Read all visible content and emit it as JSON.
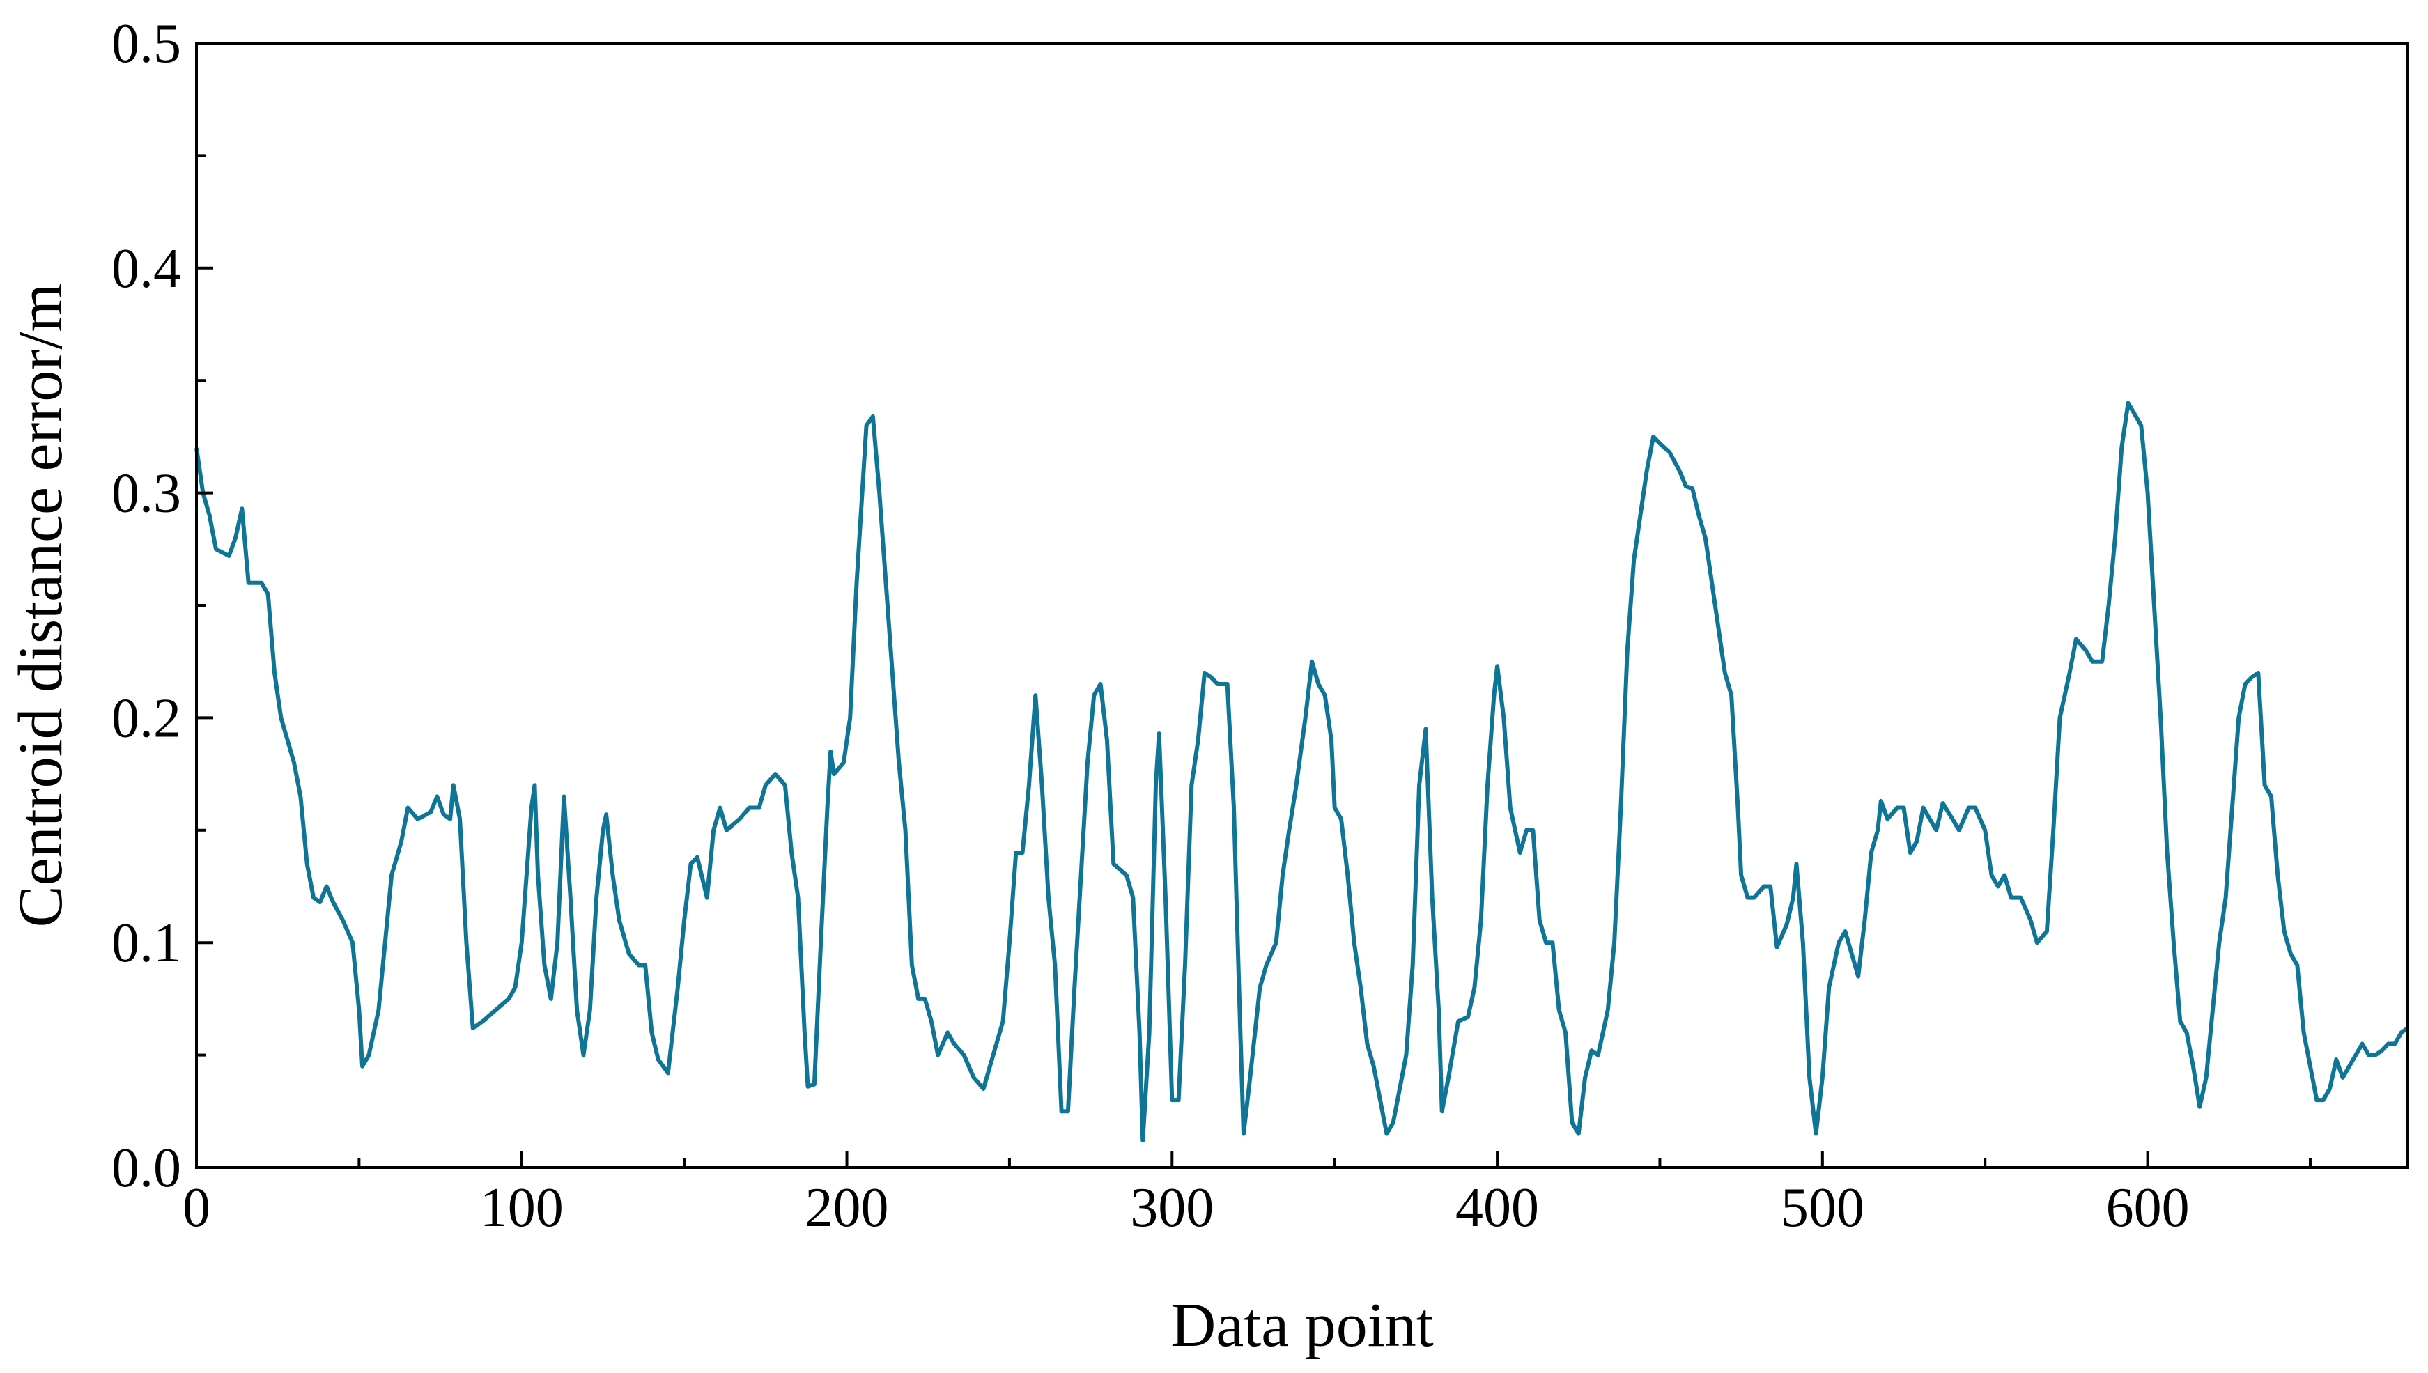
{
  "chart_data": {
    "type": "line",
    "xlabel": "Data point",
    "ylabel": "Centroid distance error/m",
    "color": "#0f7597",
    "xlim": [
      0,
      680
    ],
    "ylim": [
      0,
      0.5
    ],
    "xticks": [
      0,
      100,
      200,
      300,
      400,
      500,
      600
    ],
    "yticks": [
      {
        "value": 0,
        "label": "0.0"
      },
      0.1,
      0.2,
      0.3,
      0.4,
      0.5
    ],
    "xminorticks": [
      50,
      150,
      250,
      350,
      450,
      550,
      650
    ],
    "yminorticks": [
      0.05,
      0.15,
      0.25,
      0.35,
      0.45
    ],
    "x": [
      0,
      2,
      4,
      6,
      10,
      12,
      14,
      16,
      20,
      22,
      24,
      26,
      28,
      30,
      32,
      34,
      36,
      38,
      40,
      42,
      45,
      48,
      50,
      51,
      53,
      56,
      58,
      60,
      63,
      65,
      68,
      72,
      74,
      76,
      78,
      79,
      81,
      83,
      85,
      88,
      92,
      96,
      98,
      100,
      103,
      104,
      105,
      107,
      109,
      111,
      113,
      115,
      117,
      119,
      121,
      123,
      125,
      126,
      128,
      130,
      133,
      136,
      138,
      140,
      142,
      145,
      148,
      150,
      152,
      154,
      157,
      159,
      161,
      163,
      167,
      170,
      173,
      175,
      178,
      181,
      183,
      185,
      187,
      188,
      190,
      192,
      194,
      195,
      196,
      199,
      201,
      203,
      206,
      208,
      210,
      212,
      214,
      216,
      218,
      220,
      222,
      224,
      226,
      228,
      231,
      233,
      236,
      239,
      242,
      245,
      248,
      250,
      252,
      254,
      256,
      258,
      260,
      262,
      264,
      266,
      268,
      270,
      272,
      274,
      276,
      278,
      280,
      282,
      286,
      288,
      290,
      291,
      293,
      295,
      296,
      298,
      300,
      302,
      304,
      306,
      308,
      310,
      312,
      314,
      317,
      319,
      321,
      322,
      324,
      327,
      329,
      332,
      334,
      336,
      338,
      341,
      343,
      345,
      347,
      349,
      350,
      352,
      354,
      356,
      358,
      360,
      362,
      364,
      366,
      368,
      370,
      372,
      374,
      376,
      378,
      380,
      382,
      383,
      385,
      388,
      391,
      393,
      395,
      397,
      399,
      400,
      402,
      404,
      407,
      409,
      411,
      413,
      415,
      417,
      419,
      421,
      423,
      425,
      427,
      429,
      431,
      434,
      436,
      438,
      440,
      442,
      444,
      446,
      448,
      450,
      453,
      456,
      458,
      460,
      462,
      464,
      466,
      468,
      470,
      472,
      474,
      475,
      477,
      479,
      482,
      484,
      486,
      489,
      491,
      492,
      494,
      496,
      498,
      500,
      502,
      505,
      507,
      509,
      511,
      513,
      515,
      517,
      518,
      520,
      523,
      525,
      527,
      529,
      531,
      533,
      535,
      537,
      540,
      542,
      545,
      547,
      550,
      552,
      554,
      556,
      558,
      561,
      564,
      566,
      569,
      571,
      573,
      576,
      578,
      581,
      583,
      586,
      588,
      590,
      592,
      594,
      596,
      598,
      600,
      602,
      604,
      606,
      608,
      610,
      612,
      614,
      616,
      618,
      620,
      622,
      624,
      626,
      628,
      630,
      632,
      634,
      636,
      638,
      640,
      642,
      644,
      646,
      648,
      650,
      652,
      654,
      656,
      658,
      660,
      662,
      664,
      666,
      668,
      670,
      672,
      674,
      676,
      678,
      680
    ],
    "values": [
      0.32,
      0.3,
      0.29,
      0.275,
      0.272,
      0.28,
      0.293,
      0.26,
      0.26,
      0.255,
      0.22,
      0.2,
      0.19,
      0.18,
      0.165,
      0.135,
      0.12,
      0.118,
      0.125,
      0.118,
      0.11,
      0.1,
      0.07,
      0.045,
      0.05,
      0.07,
      0.1,
      0.13,
      0.145,
      0.16,
      0.155,
      0.158,
      0.165,
      0.157,
      0.155,
      0.17,
      0.155,
      0.1,
      0.062,
      0.065,
      0.07,
      0.075,
      0.08,
      0.1,
      0.16,
      0.17,
      0.13,
      0.09,
      0.075,
      0.1,
      0.165,
      0.12,
      0.07,
      0.05,
      0.07,
      0.12,
      0.15,
      0.157,
      0.13,
      0.11,
      0.095,
      0.09,
      0.09,
      0.06,
      0.048,
      0.042,
      0.08,
      0.11,
      0.135,
      0.138,
      0.12,
      0.15,
      0.16,
      0.15,
      0.155,
      0.16,
      0.16,
      0.17,
      0.175,
      0.17,
      0.14,
      0.12,
      0.06,
      0.036,
      0.037,
      0.1,
      0.16,
      0.185,
      0.175,
      0.18,
      0.2,
      0.26,
      0.33,
      0.334,
      0.3,
      0.26,
      0.22,
      0.18,
      0.15,
      0.09,
      0.075,
      0.075,
      0.065,
      0.05,
      0.06,
      0.055,
      0.05,
      0.04,
      0.035,
      0.05,
      0.065,
      0.1,
      0.14,
      0.14,
      0.17,
      0.21,
      0.17,
      0.12,
      0.09,
      0.025,
      0.025,
      0.08,
      0.13,
      0.18,
      0.21,
      0.215,
      0.19,
      0.135,
      0.13,
      0.12,
      0.06,
      0.012,
      0.06,
      0.17,
      0.193,
      0.12,
      0.03,
      0.03,
      0.09,
      0.17,
      0.19,
      0.22,
      0.218,
      0.215,
      0.215,
      0.16,
      0.06,
      0.015,
      0.04,
      0.08,
      0.09,
      0.1,
      0.13,
      0.15,
      0.168,
      0.2,
      0.225,
      0.215,
      0.21,
      0.19,
      0.16,
      0.155,
      0.13,
      0.1,
      0.08,
      0.055,
      0.045,
      0.03,
      0.015,
      0.02,
      0.035,
      0.05,
      0.09,
      0.17,
      0.195,
      0.12,
      0.07,
      0.025,
      0.04,
      0.065,
      0.067,
      0.08,
      0.11,
      0.17,
      0.21,
      0.223,
      0.2,
      0.16,
      0.14,
      0.15,
      0.15,
      0.11,
      0.1,
      0.1,
      0.07,
      0.06,
      0.02,
      0.015,
      0.04,
      0.052,
      0.05,
      0.07,
      0.1,
      0.16,
      0.23,
      0.27,
      0.29,
      0.31,
      0.325,
      0.322,
      0.318,
      0.31,
      0.303,
      0.302,
      0.29,
      0.28,
      0.26,
      0.24,
      0.22,
      0.21,
      0.16,
      0.13,
      0.12,
      0.12,
      0.125,
      0.125,
      0.098,
      0.108,
      0.12,
      0.135,
      0.1,
      0.04,
      0.015,
      0.04,
      0.08,
      0.1,
      0.105,
      0.095,
      0.085,
      0.11,
      0.14,
      0.15,
      0.163,
      0.155,
      0.16,
      0.16,
      0.14,
      0.145,
      0.16,
      0.155,
      0.15,
      0.162,
      0.155,
      0.15,
      0.16,
      0.16,
      0.15,
      0.13,
      0.125,
      0.13,
      0.12,
      0.12,
      0.11,
      0.1,
      0.105,
      0.15,
      0.2,
      0.22,
      0.235,
      0.23,
      0.225,
      0.225,
      0.25,
      0.28,
      0.32,
      0.34,
      0.335,
      0.33,
      0.3,
      0.25,
      0.2,
      0.14,
      0.1,
      0.065,
      0.06,
      0.045,
      0.027,
      0.04,
      0.07,
      0.1,
      0.12,
      0.16,
      0.2,
      0.215,
      0.218,
      0.22,
      0.17,
      0.165,
      0.13,
      0.105,
      0.095,
      0.09,
      0.06,
      0.045,
      0.03,
      0.03,
      0.035,
      0.048,
      0.04,
      0.045,
      0.05,
      0.055,
      0.05,
      0.05,
      0.052,
      0.055,
      0.055,
      0.06,
      0.062
    ]
  }
}
